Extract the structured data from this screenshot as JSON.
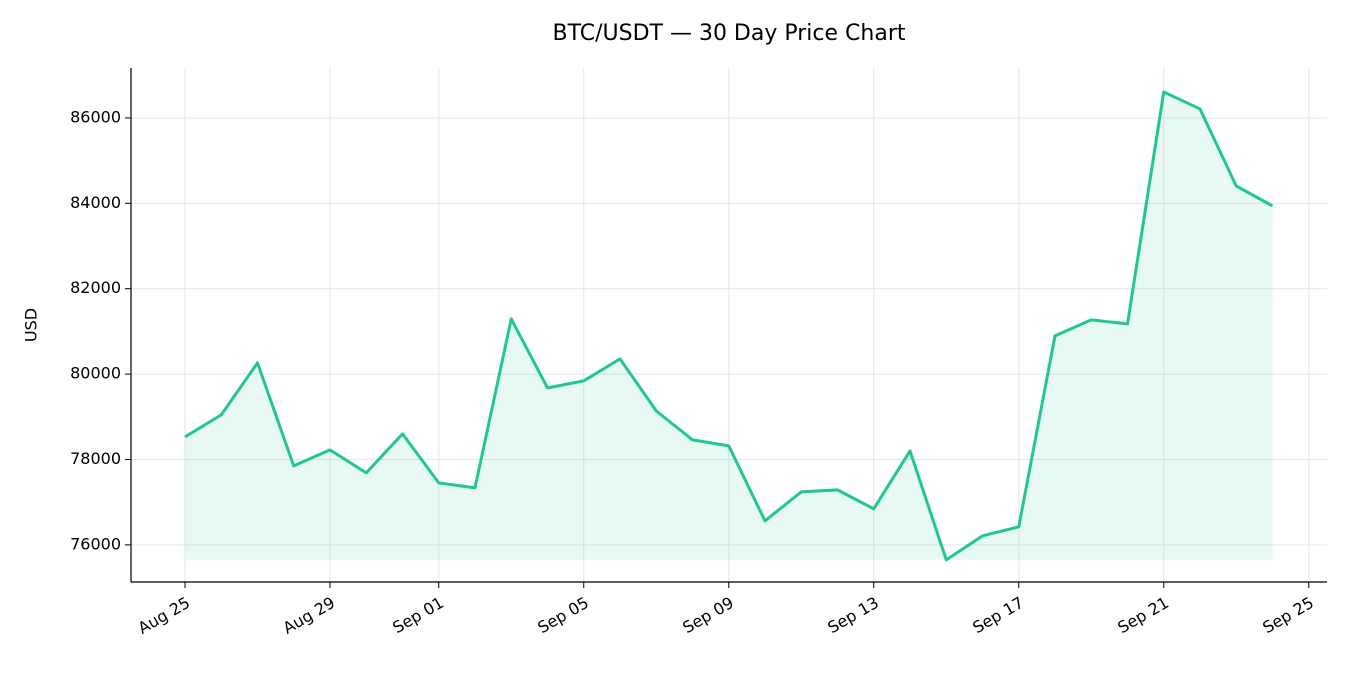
{
  "chart_data": {
    "type": "line",
    "title": "BTC/USDT — 30 Day Price Chart",
    "y_label": "USD",
    "categories": [
      "Aug 25",
      null,
      null,
      null,
      "Aug 29",
      null,
      null,
      "Sep 01",
      null,
      null,
      null,
      "Sep 05",
      null,
      null,
      null,
      "Sep 09",
      null,
      null,
      null,
      "Sep 13",
      null,
      null,
      null,
      "Sep 17",
      null,
      null,
      null,
      "Sep 21",
      null,
      null,
      null,
      "Sep 25"
    ],
    "values": [
      78530,
      79045,
      80262,
      77850,
      78225,
      77686,
      78600,
      77452,
      77335,
      81293,
      79677,
      79841,
      80356,
      79138,
      78459,
      78318,
      76562,
      77241,
      77288,
      76843,
      78201,
      75649,
      76211,
      76422,
      80895,
      81269,
      81176,
      86609,
      86211,
      84407,
      83939,
      null
    ],
    "color": "#20c987",
    "fill": true,
    "ylim": [
      75130,
      87170
    ],
    "yticks": [
      76000,
      78000,
      80000,
      82000,
      84000,
      86000
    ],
    "grid": true
  }
}
